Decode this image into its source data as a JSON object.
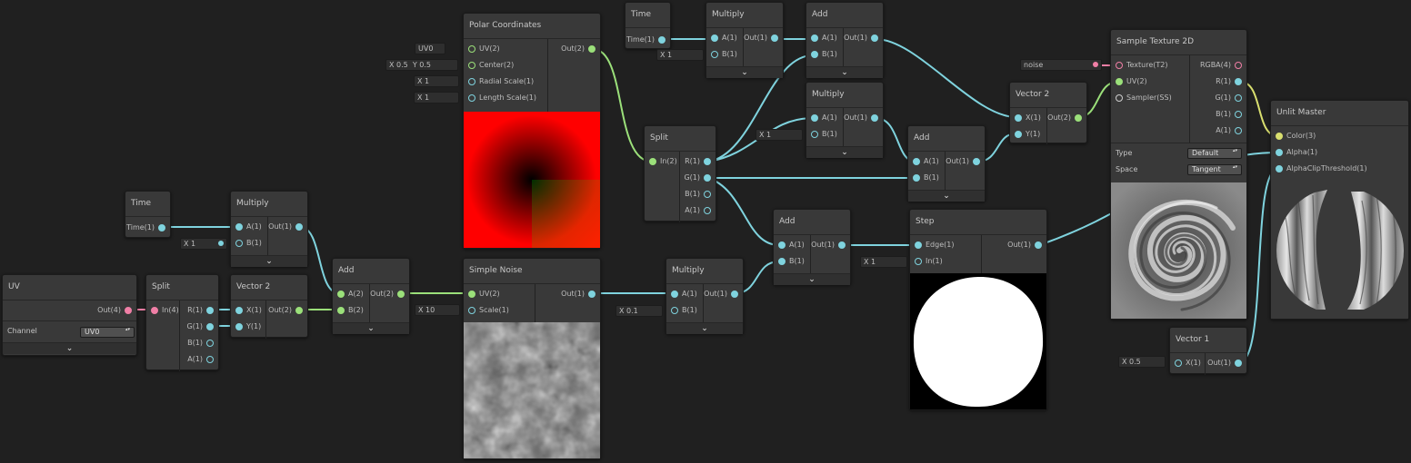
{
  "colors": {
    "canvas": "#202020",
    "node": "#393939",
    "vector1_port": "#7fd3de",
    "vector2_port": "#9be07a",
    "vector4_port": "#f07fa6",
    "vector3_port": "#d9df6f"
  },
  "icons": {
    "expand": "chevron-down-icon"
  },
  "chevron": "⌄",
  "nodes": {
    "uv": {
      "title": "UV",
      "out": "Out(4)",
      "channel_label": "Channel",
      "channel_value": "UV0"
    },
    "split_a": {
      "title": "Split",
      "in": "In(4)",
      "outs": [
        "R(1)",
        "G(1)",
        "B(1)",
        "A(1)"
      ]
    },
    "vector2_a": {
      "title": "Vector 2",
      "ins": [
        "X(1)",
        "Y(1)"
      ],
      "out": "Out(2)"
    },
    "time_a": {
      "title": "Time",
      "out": "Time(1)"
    },
    "multiply_a": {
      "title": "Multiply",
      "ins": [
        "A(1)",
        "B(1)"
      ],
      "out": "Out(1)",
      "b_field": "X 1"
    },
    "add_a": {
      "title": "Add",
      "ins": [
        "A(2)",
        "B(2)"
      ],
      "out": "Out(2)"
    },
    "polar": {
      "title": "Polar Coordinates",
      "ins": [
        "UV(2)",
        "Center(2)",
        "Radial Scale(1)",
        "Length Scale(1)"
      ],
      "out": "Out(2)",
      "uv_field": "UV0",
      "center_x": "X 0.5",
      "center_y": "Y 0.5",
      "radial_field": "X 1",
      "length_field": "X 1"
    },
    "noise": {
      "title": "Simple Noise",
      "ins": [
        "UV(2)",
        "Scale(1)"
      ],
      "out": "Out(1)",
      "scale_field": "X 10"
    },
    "time_b": {
      "title": "Time",
      "out": "Time(1)"
    },
    "multiply_b": {
      "title": "Multiply",
      "ins": [
        "A(1)",
        "B(1)"
      ],
      "out": "Out(1)",
      "b_field": "X 1"
    },
    "add_b": {
      "title": "Add",
      "ins": [
        "A(1)",
        "B(1)"
      ],
      "out": "Out(1)"
    },
    "multiply_c": {
      "title": "Multiply",
      "ins": [
        "A(1)",
        "B(1)"
      ],
      "out": "Out(1)",
      "b_field": "X 1"
    },
    "split_b": {
      "title": "Split",
      "in": "In(2)",
      "outs": [
        "R(1)",
        "G(1)",
        "B(1)",
        "A(1)"
      ]
    },
    "add_c": {
      "title": "Add",
      "ins": [
        "A(1)",
        "B(1)"
      ],
      "out": "Out(1)"
    },
    "add_d": {
      "title": "Add",
      "ins": [
        "A(1)",
        "B(1)"
      ],
      "out": "Out(1)"
    },
    "multiply_d": {
      "title": "Multiply",
      "ins": [
        "A(1)",
        "B(1)"
      ],
      "out": "Out(1)",
      "b_field": "X 0.1"
    },
    "step": {
      "title": "Step",
      "ins": [
        "Edge(1)",
        "In(1)"
      ],
      "out": "Out(1)",
      "in_field": "X 1"
    },
    "vector2_b": {
      "title": "Vector 2",
      "ins": [
        "X(1)",
        "Y(1)"
      ],
      "out": "Out(2)"
    },
    "sample": {
      "title": "Sample Texture 2D",
      "ins": [
        "Texture(T2)",
        "UV(2)",
        "Sampler(SS)"
      ],
      "outs": [
        "RGBA(4)",
        "R(1)",
        "G(1)",
        "B(1)",
        "A(1)"
      ],
      "texture_field": "noise",
      "type_label": "Type",
      "type_value": "Default",
      "space_label": "Space",
      "space_value": "Tangent"
    },
    "vector1": {
      "title": "Vector 1",
      "in": "X(1)",
      "out": "Out(1)",
      "x_field": "X 0.5"
    },
    "master": {
      "title": "Unlit Master",
      "ins": [
        "Color(3)",
        "Alpha(1)",
        "AlphaClipThreshold(1)"
      ]
    }
  }
}
